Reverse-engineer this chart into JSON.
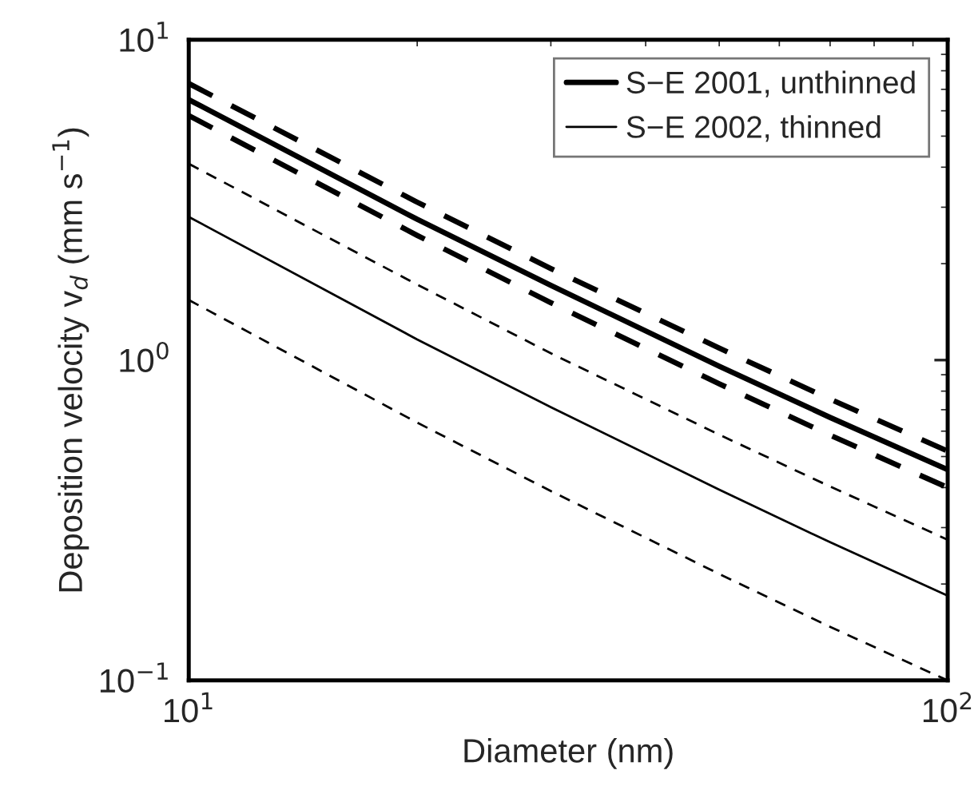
{
  "chart_data": {
    "type": "line",
    "xlabel": "Diameter (nm)",
    "ylabel": "Deposition velocity v$_{d}$ (mm s$^{−1}$)",
    "log": "xy",
    "xlim": [
      10,
      100
    ],
    "ylim": [
      0.1,
      10
    ],
    "xticks": [
      {
        "value": 10,
        "label": "10$^{1}$"
      },
      {
        "value": 100,
        "label": "10$^{2}$"
      }
    ],
    "yticks": [
      {
        "value": 0.1,
        "label": "10$^{−1}$"
      },
      {
        "value": 1,
        "label": "10$^{0}$"
      },
      {
        "value": 10,
        "label": "10$^{1}$"
      }
    ],
    "x": [
      10,
      20,
      30,
      50,
      70,
      100
    ],
    "series": [
      {
        "name": "S−E 2001, unthinned",
        "color": "#000000",
        "line_style": "solid",
        "values": [
          6.5,
          2.75,
          1.71,
          0.957,
          0.662,
          0.455
        ]
      },
      {
        "name": "S−E 2002, thinned",
        "color": "#000000",
        "line_style": "solid",
        "values": [
          2.8,
          1.16,
          0.713,
          0.394,
          0.27,
          0.184
        ]
      },
      {
        "color": "#000000",
        "line_style": "dashed",
        "values": [
          7.3,
          3.11,
          1.93,
          1.09,
          0.755,
          0.52
        ]
      },
      {
        "color": "#000000",
        "line_style": "dashed",
        "values": [
          5.8,
          2.45,
          1.51,
          0.843,
          0.583,
          0.4
        ]
      },
      {
        "color": "#000000",
        "line_style": "dashed",
        "values": [
          4.1,
          1.72,
          1.05,
          0.585,
          0.403,
          0.275
        ]
      },
      {
        "color": "#000000",
        "line_style": "dashed",
        "values": [
          1.54,
          0.638,
          0.39,
          0.215,
          0.147,
          0.1
        ]
      }
    ],
    "grid": false,
    "legend": "top right"
  }
}
